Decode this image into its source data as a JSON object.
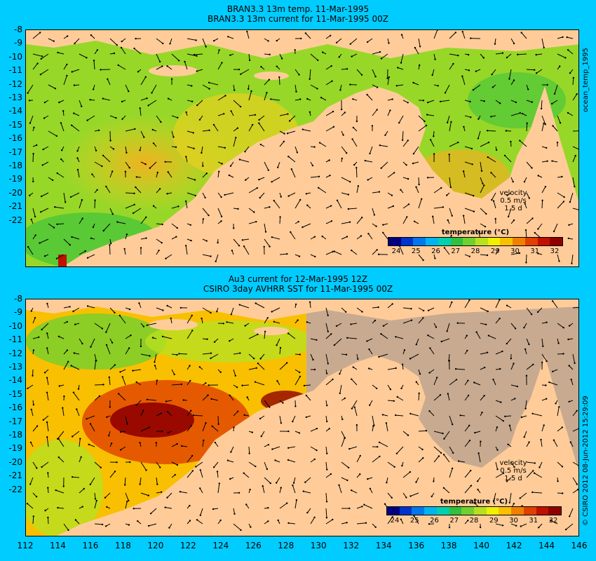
{
  "top_panel": {
    "title_line1": "BRAN3.3 13m temp. 11-Mar-1995",
    "title_line2": "BRAN3.3 13m current for 11-Mar-1995 00Z",
    "side_label": "ocean_temp_1995",
    "velocity_label": "velocity",
    "velocity_value": "0.5 m/s",
    "velocity_time": "1.5 d",
    "colorbar_title": "temperature (°C)"
  },
  "bottom_panel": {
    "title_line1": "Au3 current for 12-Mar-1995 12Z",
    "title_line2": "CSIRO 3day AVHRR SST for 11-Mar-1995 00Z",
    "side_label": "© CSIRO 2012  08-Jun-2012 15:29:09",
    "velocity_label": "velocity",
    "velocity_value": "0.5 m/s",
    "velocity_time": "1.5 d",
    "colorbar_title": "temperature (°C)"
  },
  "colorbar": {
    "ticks": [
      "24",
      "25",
      "26",
      "27",
      "28",
      "29",
      "30",
      "31",
      "32"
    ],
    "colors": [
      "#000080",
      "#0033cc",
      "#0077ee",
      "#00b4f0",
      "#00d0b0",
      "#30c040",
      "#70d030",
      "#b8e020",
      "#f0f000",
      "#f8c000",
      "#f08000",
      "#e04000",
      "#c01000",
      "#900000"
    ]
  },
  "axes": {
    "lat_labels": [
      "-8",
      "-9",
      "-10",
      "-11",
      "-12",
      "-13",
      "-14",
      "-15",
      "-16",
      "-17",
      "-18",
      "-19",
      "-20",
      "-21",
      "-22"
    ],
    "lon_labels": [
      "112",
      "114",
      "116",
      "118",
      "120",
      "122",
      "124",
      "126",
      "128",
      "130",
      "132",
      "134",
      "136",
      "138",
      "140",
      "142",
      "144",
      "146"
    ]
  },
  "colors": {
    "background": "#00ccff",
    "land": "#ffcc99",
    "no_data": "#c8aa90"
  }
}
